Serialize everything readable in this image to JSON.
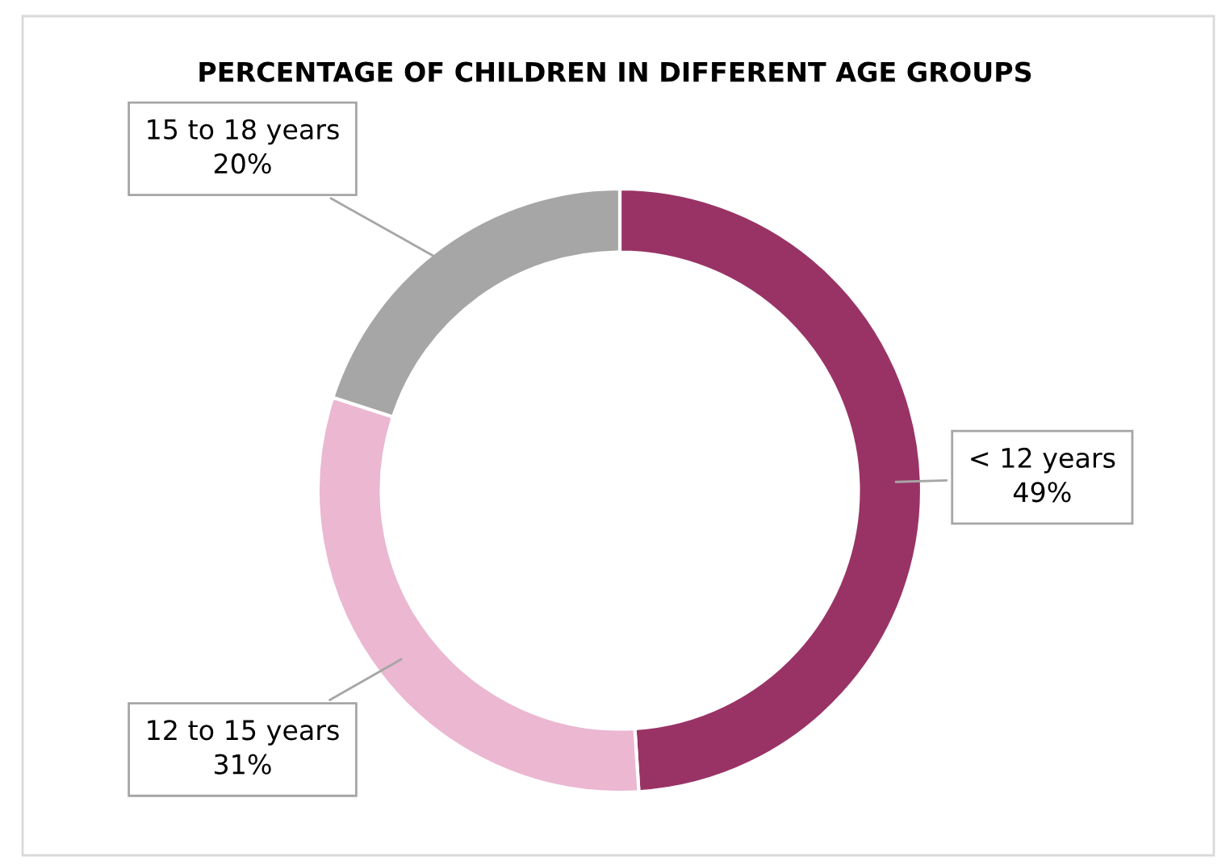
{
  "chart_data": {
    "type": "donut",
    "title": "PERCENTAGE OF CHILDREN IN DIFFERENT AGE GROUPS",
    "categories": [
      "< 12 years",
      "12 to 15 years",
      "15 to 18 years"
    ],
    "values": [
      49,
      31,
      20
    ],
    "colors": [
      "#993366",
      "#ebb7d1",
      "#a6a6a6"
    ],
    "value_labels": [
      "49%",
      "31%",
      "20%"
    ]
  }
}
